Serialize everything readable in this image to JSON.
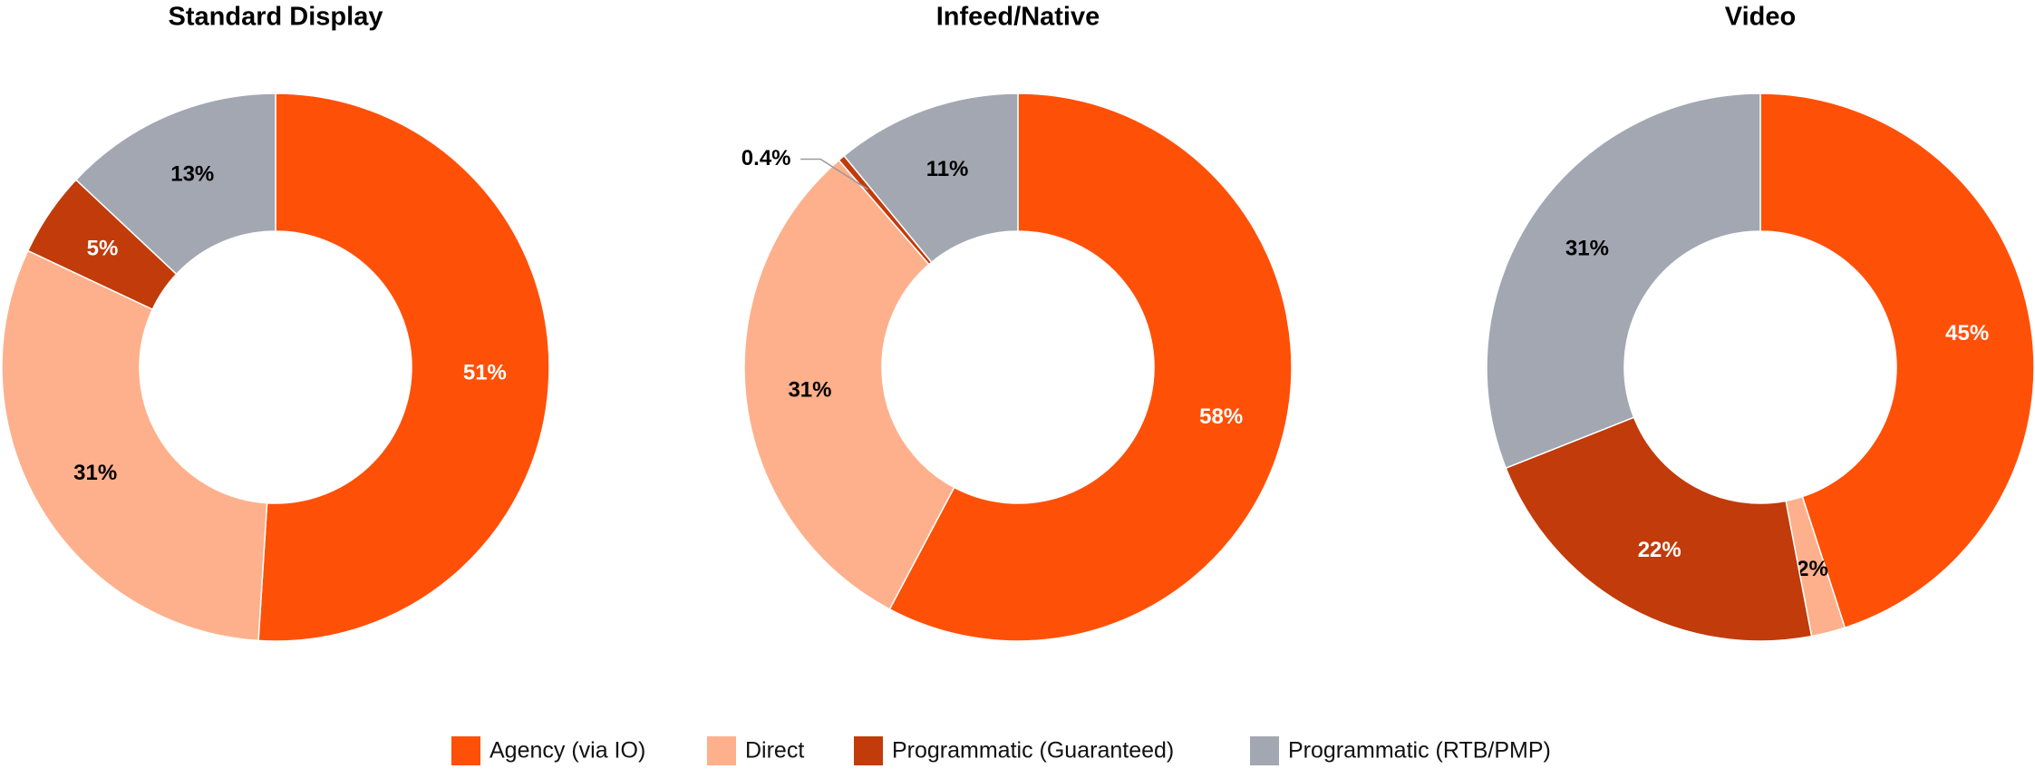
{
  "legend": {
    "labels": [
      "Agency (via IO)",
      "Direct",
      "Programmatic (Guaranteed)",
      "Programmatic (RTB/PMP)"
    ],
    "colors": [
      "#ff5008",
      "#feb08c",
      "#c23b0a",
      "#a2a7b2"
    ]
  },
  "chart_data": [
    {
      "type": "pie",
      "title": "Standard Display",
      "values": [
        51,
        31,
        5,
        13
      ],
      "value_labels": [
        "51%",
        "31%",
        "5%",
        "13%"
      ]
    },
    {
      "type": "pie",
      "title": "Infeed/Native",
      "values": [
        58,
        31,
        0.4,
        11
      ],
      "value_labels": [
        "58%",
        "31%",
        "0.4%",
        "11%"
      ]
    },
    {
      "type": "pie",
      "title": "Video",
      "values": [
        45,
        2,
        22,
        31
      ],
      "value_labels": [
        "45%",
        "2%",
        "22%",
        "31%"
      ]
    }
  ]
}
